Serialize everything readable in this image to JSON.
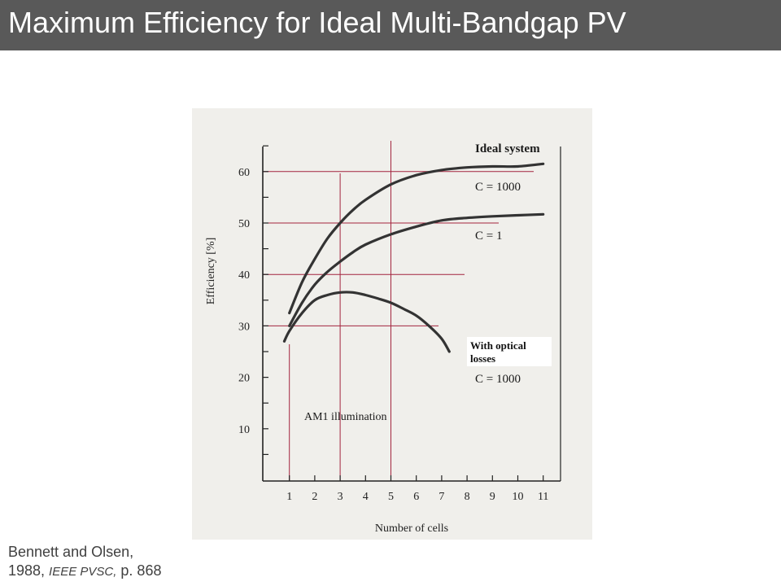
{
  "slide": {
    "title": "Maximum Efficiency for Ideal Multi-Bandgap PV"
  },
  "citation": {
    "line1": "Bennett and Olsen,",
    "line2_prefix": "1988, ",
    "line2_journal": "IEEE PVSC,",
    "line2_suffix": " p. 868"
  },
  "colors": {
    "title_bar": "#595959",
    "curve": "#333333",
    "guide_lines": "#a3243e",
    "figure_background": "#f0efeb"
  },
  "chart_data": {
    "type": "line",
    "xlabel": "Number of cells",
    "ylabel": "Efficiency [%]",
    "x_ticks": [
      "1",
      "2",
      "3",
      "4",
      "5",
      "6",
      "7",
      "8",
      "9",
      "10",
      "11"
    ],
    "y_ticks": [
      "10",
      "20",
      "30",
      "40",
      "50",
      "60"
    ],
    "xlim": [
      0,
      11
    ],
    "ylim": [
      0,
      66
    ],
    "grid": false,
    "series": [
      {
        "name": "Ideal system, C = 1000",
        "x": [
          1,
          1.5,
          2,
          2.5,
          3,
          3.5,
          4,
          5,
          6,
          7,
          8,
          9,
          10,
          11
        ],
        "y": [
          32.5,
          38.5,
          43,
          47,
          50,
          52.5,
          54.5,
          57.5,
          59.3,
          60.3,
          60.8,
          61,
          61,
          61.5
        ]
      },
      {
        "name": "C = 1",
        "x": [
          1,
          1.5,
          2,
          2.5,
          3,
          3.5,
          4,
          5,
          6,
          7,
          8,
          9,
          10,
          11
        ],
        "y": [
          30,
          34.5,
          38,
          40.5,
          42.5,
          44.3,
          45.8,
          47.8,
          49.3,
          50.5,
          51,
          51.3,
          51.5,
          51.7
        ]
      },
      {
        "name": "With optical losses, C = 1000",
        "x": [
          0.8,
          1,
          1.5,
          2,
          2.5,
          3,
          3.5,
          4,
          4.5,
          5,
          5.5,
          6,
          6.5,
          7,
          7.3
        ],
        "y": [
          27,
          29,
          32.5,
          35,
          36,
          36.5,
          36.5,
          36,
          35.3,
          34.5,
          33.3,
          32,
          30,
          27.5,
          25
        ]
      }
    ],
    "annotations": [
      "Ideal system",
      "C = 1000",
      "C = 1",
      "With optical losses",
      "C = 1000",
      "AM1 illumination"
    ],
    "guide_lines": {
      "horizontal_y": [
        60,
        50,
        40,
        30
      ],
      "vertical_x": [
        1,
        3,
        5
      ]
    }
  }
}
